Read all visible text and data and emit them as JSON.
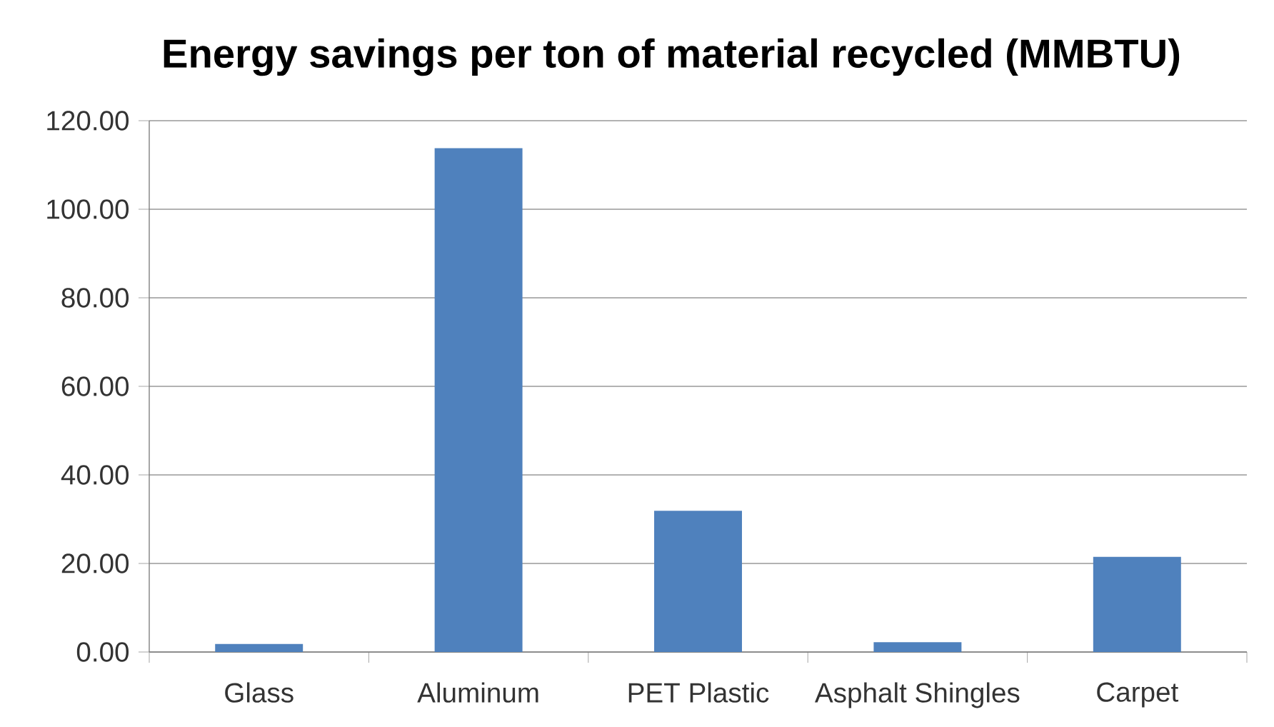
{
  "chart_data": {
    "type": "bar",
    "title": "Energy savings per ton of material recycled (MMBTU)",
    "categories": [
      "Glass",
      "Aluminum",
      "PET Plastic",
      "Asphalt Shingles",
      "Carpet"
    ],
    "values": [
      1.8,
      113.8,
      31.9,
      2.2,
      21.5
    ],
    "color": "#4f81bd",
    "ylim": [
      0,
      120
    ],
    "yticks": [
      {
        "value": 0,
        "label": "0.00"
      },
      {
        "value": 20,
        "label": "20.00"
      },
      {
        "value": 40,
        "label": "40.00"
      },
      {
        "value": 60,
        "label": "60.00"
      },
      {
        "value": 80,
        "label": "80.00"
      },
      {
        "value": 100,
        "label": "100.00"
      },
      {
        "value": 120,
        "label": "120.00"
      }
    ],
    "grid": "y"
  }
}
